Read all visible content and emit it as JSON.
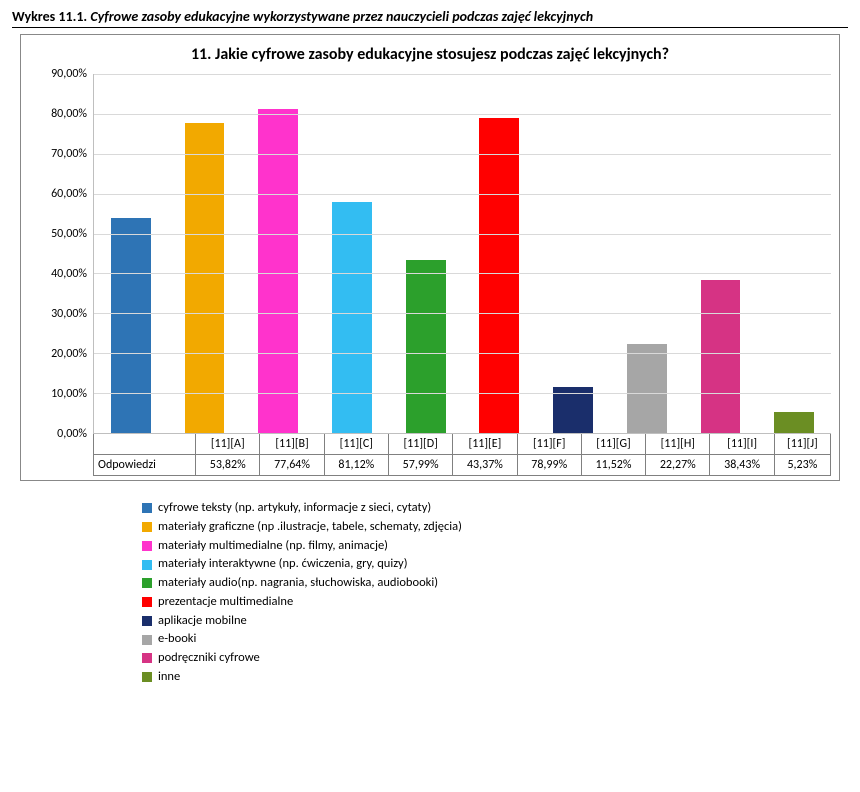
{
  "caption": {
    "lead": "Wykres 11.1.",
    "rest": "Cyfrowe zasoby edukacyjne wykorzystywane przez nauczycieli podczas zajęć lekcyjnych"
  },
  "chart": {
    "type": "bar",
    "title": "11. Jakie cyfrowe zasoby edukacyjne stosujesz podczas zajęć  lekcyjnych?",
    "title_fontsize": 16,
    "label_fontsize": 12,
    "background_color": "#ffffff",
    "grid_color": "#d9d9d9",
    "axis_color": "#bfbfbf",
    "ylim": [
      0,
      90
    ],
    "ytick_step": 10,
    "ytick_format_suffix": ",00%",
    "bar_width": 0.54,
    "categories": [
      "[11][A]",
      "[11][B]",
      "[11][C]",
      "[11][D]",
      "[11][E]",
      "[11][F]",
      "[11][G]",
      "[11][H]",
      "[11][I]",
      "[11][J]"
    ],
    "values": [
      53.82,
      77.64,
      81.12,
      57.99,
      43.37,
      78.99,
      11.52,
      22.27,
      38.43,
      5.23
    ],
    "bar_colors": [
      "#2e74b5",
      "#f2a900",
      "#ff33cc",
      "#33bdf2",
      "#2ca02c",
      "#ff0000",
      "#1a2e6b",
      "#a6a6a6",
      "#d63384",
      "#6b8e23"
    ],
    "table": {
      "row_header": "Odpowiedzi",
      "cells": [
        "53,82%",
        "77,64%",
        "81,12%",
        "57,99%",
        "43,37%",
        "78,99%",
        "11,52%",
        "22,27%",
        "38,43%",
        "5,23%"
      ]
    }
  },
  "legend": {
    "items": [
      {
        "color": "#2e74b5",
        "label": "cyfrowe teksty (np. artykuły, informacje z sieci, cytaty)"
      },
      {
        "color": "#f2a900",
        "label": "materiały graficzne (np .ilustracje, tabele, schematy, zdjęcia)"
      },
      {
        "color": "#ff33cc",
        "label": "materiały multimedialne (np. filmy, animacje)"
      },
      {
        "color": "#33bdf2",
        "label": "materiały interaktywne (np. ćwiczenia, gry, quizy)"
      },
      {
        "color": "#2ca02c",
        "label": "materiały audio(np. nagrania, słuchowiska, audiobooki)"
      },
      {
        "color": "#ff0000",
        "label": "prezentacje multimedialne"
      },
      {
        "color": "#1a2e6b",
        "label": "aplikacje mobilne"
      },
      {
        "color": "#a6a6a6",
        "label": "e-booki"
      },
      {
        "color": "#d63384",
        "label": "podręczniki cyfrowe"
      },
      {
        "color": "#6b8e23",
        "label": "inne"
      }
    ]
  }
}
